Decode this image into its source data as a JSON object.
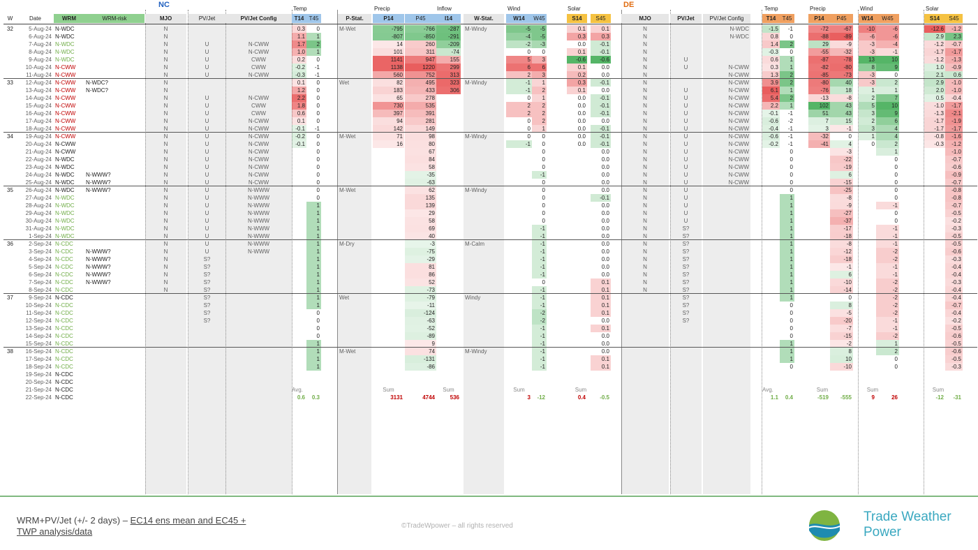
{
  "colors": {
    "green": "#2f8f2f",
    "red": "#c00000",
    "lightgreen": "#70ad47",
    "blue": "#1f5fbf",
    "orange": "#e06c10",
    "gray": "#606060"
  },
  "header": {
    "nc_label": "NC",
    "de_label": "DE",
    "temp": "Temp",
    "precip": "Precip",
    "inflow": "Inflow",
    "wind": "Wind",
    "solar": "Solar",
    "cols": {
      "w": "W",
      "date": "Date",
      "wrm": "WRM",
      "wrm_risk": "WRM-risk",
      "mjo": "MJO",
      "pvjet": "PV/Jet",
      "pvjet_config": "PV/Jet Config",
      "t14": "T14",
      "t45": "T45",
      "pstat": "P-Stat.",
      "p14": "P14",
      "p45": "P45",
      "i14": "I14",
      "wstat": "W-Stat.",
      "w14": "W14",
      "w45": "W45",
      "s14": "S14",
      "s45": "S45",
      "de_mjo": "MJO",
      "de_pvjet": "PV/Jet",
      "de_pvjet_config": "PV/Jet Config",
      "de_t14": "T14",
      "de_t45": "T45",
      "de_p14": "P14",
      "de_p45": "P45",
      "de_w14": "W14",
      "de_w45": "W45",
      "de_s14": "S14",
      "de_s45": "S45"
    }
  },
  "summary": {
    "avg": "Avg.",
    "sum": "Sum",
    "nc": {
      "t14": "0.6",
      "t45": "0.3",
      "p14": "3131",
      "p45": "4744",
      "i14": "536",
      "w14": "3",
      "w45": "-12",
      "s14": "0.4",
      "s45": "-0.5"
    },
    "de": {
      "t14": "1.1",
      "t45": "0.4",
      "p14": "-519",
      "p45": "-555",
      "w14": "9",
      "w45": "26",
      "s14": "-12",
      "s45": "-31"
    }
  },
  "rows": [
    [
      "32",
      "5-Aug-24",
      "N-WDC",
      "",
      "N",
      "",
      "",
      "0.3",
      "0",
      "M-Wet",
      "-795",
      "-766",
      "-287",
      "M-Windy",
      "-5",
      "-5",
      "0.1",
      "0.1",
      "N",
      "",
      "N-WDC",
      "-1.5",
      "-1",
      "-72",
      "-67",
      "-10",
      "-6",
      "-12.6",
      "-1.2"
    ],
    [
      "",
      "6-Aug-24",
      "N-WDC",
      "",
      "N",
      "",
      "",
      "1.1",
      "1",
      "",
      "-807",
      "-850",
      "-291",
      "",
      "-4",
      "-5",
      "0.3",
      "0.3",
      "N",
      "",
      "N-WDC",
      "0.8",
      "0",
      "-88",
      "-89",
      "-6",
      "-6",
      "2.9",
      "2.3"
    ],
    [
      "",
      "7-Aug-24",
      "N-WDC",
      "",
      "N",
      "U",
      "N-CWW",
      "1.7",
      "2",
      "",
      "14",
      "260",
      "-209",
      "",
      "-2",
      "-3",
      "0.0",
      "-0.1",
      "N",
      "",
      "",
      "1.4",
      "2",
      "29",
      "-9",
      "-3",
      "-4",
      "-1.2",
      "-0.7"
    ],
    [
      "",
      "8-Aug-24",
      "N-WDC",
      "",
      "N",
      "U",
      "N-CWW",
      "1.0",
      "1",
      "",
      "101",
      "311",
      "-74",
      "",
      "0",
      "0",
      "0.1",
      "-0.1",
      "N",
      "",
      "",
      "-0.3",
      "0",
      "-55",
      "-32",
      "-3",
      "-1",
      "-1.7",
      "-1.7"
    ],
    [
      "",
      "9-Aug-24",
      "N-WDC",
      "",
      "N",
      "U",
      "CWW",
      "0.2",
      "0",
      "",
      "1141",
      "947",
      "155",
      "",
      "5",
      "3",
      "-0.6",
      "-0.6",
      "N",
      "U",
      "",
      "0.6",
      "1",
      "-87",
      "-78",
      "13",
      "10",
      "-1.2",
      "-1.3"
    ],
    [
      "",
      "10-Aug-24",
      "N-CWW",
      "",
      "N",
      "U",
      "CWW",
      "-0.2",
      "-1",
      "",
      "1138",
      "1220",
      "299",
      "",
      "6",
      "6",
      "0.1",
      "0.0",
      "N",
      "U",
      "N-CWW",
      "0.3",
      "1",
      "-82",
      "-80",
      "8",
      "9",
      "1.0",
      "-0.9"
    ],
    [
      "",
      "11-Aug-24",
      "N-CWW",
      "",
      "N",
      "U",
      "N-CWW",
      "-0.3",
      "-1",
      "",
      "560",
      "752",
      "313",
      "",
      "2",
      "3",
      "0.2",
      "0.0",
      "N",
      "",
      "N-CWW",
      "1.3",
      "2",
      "-85",
      "-73",
      "-3",
      "0",
      "2.1",
      "0.6"
    ],
    [
      "33",
      "12-Aug-24",
      "N-CWW",
      "N-WDC?",
      "N",
      "",
      "",
      "0.1",
      "0",
      "Wet",
      "82",
      "495",
      "323",
      "M-Windy",
      "-1",
      "1",
      "0.3",
      "-0.1",
      "N",
      "",
      "N-CWW",
      "3.9",
      "2",
      "-80",
      "40",
      "-3",
      "2",
      "2.9",
      "-1.0"
    ],
    [
      "",
      "13-Aug-24",
      "N-CWW",
      "N-WDC?",
      "N",
      "",
      "",
      "1.2",
      "0",
      "",
      "183",
      "433",
      "306",
      "",
      "-1",
      "2",
      "0.1",
      "0.0",
      "N",
      "U",
      "N-CWW",
      "6.1",
      "1",
      "-76",
      "18",
      "1",
      "1",
      "2.0",
      "-1.0"
    ],
    [
      "",
      "14-Aug-24",
      "N-CWW",
      "",
      "N",
      "U",
      "N-CWW",
      "2.2",
      "0",
      "",
      "65",
      "278",
      "",
      "",
      "0",
      "1",
      "0.0",
      "-0.1",
      "N",
      "U",
      "N-CWW",
      "5.4",
      "2",
      "-13",
      "-8",
      "2",
      "7",
      "0.5",
      "-0.4"
    ],
    [
      "",
      "15-Aug-24",
      "N-CWW",
      "",
      "N",
      "U",
      "CWW",
      "1.8",
      "0",
      "",
      "730",
      "535",
      "",
      "",
      "2",
      "2",
      "0.0",
      "-0.1",
      "N",
      "U",
      "N-CWW",
      "2.2",
      "1",
      "102",
      "43",
      "5",
      "10",
      "-1.0",
      "-1.7"
    ],
    [
      "",
      "16-Aug-24",
      "N-CWW",
      "",
      "N",
      "U",
      "CWW",
      "0.6",
      "0",
      "",
      "397",
      "391",
      "",
      "",
      "2",
      "2",
      "0.0",
      "-0.1",
      "N",
      "U",
      "N-CWW",
      "-0.1",
      "-1",
      "51",
      "43",
      "3",
      "9",
      "-1.3",
      "-2.1"
    ],
    [
      "",
      "17-Aug-24",
      "N-CWW",
      "",
      "N",
      "U",
      "N-CWW",
      "0.1",
      "0",
      "",
      "94",
      "281",
      "",
      "",
      "0",
      "2",
      "0.0",
      "0.0",
      "N",
      "U",
      "N-CWW",
      "-0.6",
      "-2",
      "7",
      "15",
      "2",
      "6",
      "-1.7",
      "-1.9"
    ],
    [
      "",
      "18-Aug-24",
      "N-CWW",
      "",
      "N",
      "U",
      "N-CWW",
      "-0.1",
      "-1",
      "",
      "142",
      "149",
      "",
      "",
      "0",
      "1",
      "0.0",
      "-0.1",
      "N",
      "U",
      "N-CWW",
      "-0.4",
      "-1",
      "3",
      "-1",
      "3",
      "4",
      "-1.7",
      "-1.7"
    ],
    [
      "34",
      "19-Aug-24",
      "N-CWW",
      "",
      "N",
      "U",
      "N-CWW",
      "-0.2",
      "0",
      "M-Wet",
      "71",
      "98",
      "",
      "M-Windy",
      "0",
      "0",
      "0.0",
      "-0.1",
      "N",
      "U",
      "N-CWW",
      "-0.6",
      "-1",
      "-32",
      "0",
      "1",
      "4",
      "-0.8",
      "-1.6"
    ],
    [
      "",
      "20-Aug-24",
      "N-CWW",
      "",
      "N",
      "U",
      "N-CWW",
      "-0.1",
      "0",
      "",
      "16",
      "80",
      "",
      "",
      "-1",
      "0",
      "0.0",
      "-0.1",
      "N",
      "U",
      "N-CWW",
      "-0.2",
      "-1",
      "-41",
      "4",
      "0",
      "2",
      "-0.3",
      "-1.2"
    ],
    [
      "",
      "21-Aug-24",
      "N-CWW",
      "",
      "N",
      "U",
      "N-CWW",
      "",
      "0",
      "",
      "",
      "67",
      "",
      "",
      "",
      "0",
      "",
      "0.0",
      "N",
      "U",
      "N-CWW",
      "",
      "0",
      "",
      "-3",
      "",
      "1",
      "",
      "-1.0"
    ],
    [
      "",
      "22-Aug-24",
      "N-WDC",
      "",
      "N",
      "U",
      "N-CWW",
      "",
      "0",
      "",
      "",
      "84",
      "",
      "",
      "",
      "0",
      "",
      "0.0",
      "N",
      "U",
      "N-CWW",
      "",
      "0",
      "",
      "-22",
      "",
      "0",
      "",
      "-0.7"
    ],
    [
      "",
      "23-Aug-24",
      "N-WDC",
      "",
      "N",
      "U",
      "N-CWW",
      "",
      "0",
      "",
      "",
      "58",
      "",
      "",
      "",
      "0",
      "",
      "0.0",
      "N",
      "U",
      "N-CWW",
      "",
      "0",
      "",
      "-19",
      "",
      "0",
      "",
      "-0.6"
    ],
    [
      "",
      "24-Aug-24",
      "N-WDC",
      "N-WWW?",
      "N",
      "U",
      "N-CWW",
      "",
      "0",
      "",
      "",
      "-35",
      "",
      "",
      "",
      "-1",
      "",
      "0.0",
      "N",
      "U",
      "N-CWW",
      "",
      "0",
      "",
      "6",
      "",
      "0",
      "",
      "-0.9"
    ],
    [
      "",
      "25-Aug-24",
      "N-WDC",
      "N-WWW?",
      "N",
      "U",
      "N-CWW",
      "",
      "0",
      "",
      "",
      "-63",
      "",
      "",
      "",
      "0",
      "",
      "0.0",
      "N",
      "U",
      "N-CWW",
      "",
      "0",
      "",
      "-15",
      "",
      "0",
      "",
      "-0.7"
    ],
    [
      "35",
      "26-Aug-24",
      "N-WDC",
      "N-WWW?",
      "N",
      "U",
      "N-WWW",
      "",
      "0",
      "M-Wet",
      "",
      "62",
      "",
      "M-Windy",
      "",
      "0",
      "",
      "0.0",
      "N",
      "U",
      "",
      "",
      "0",
      "",
      "-25",
      "",
      "0",
      "",
      "-0.8"
    ],
    [
      "",
      "27-Aug-24",
      "N-WDC",
      "",
      "N",
      "U",
      "N-WWW",
      "",
      "0",
      "",
      "",
      "135",
      "",
      "",
      "",
      "0",
      "",
      "-0.1",
      "N",
      "U",
      "",
      "",
      "1",
      "",
      "-8",
      "",
      "0",
      "",
      "-0.8"
    ],
    [
      "",
      "28-Aug-24",
      "N-WDC",
      "",
      "N",
      "U",
      "N-WWW",
      "",
      "1",
      "",
      "",
      "139",
      "",
      "",
      "",
      "0",
      "",
      "0.0",
      "N",
      "U",
      "",
      "",
      "1",
      "",
      "-9",
      "",
      "-1",
      "",
      "-0.7"
    ],
    [
      "",
      "29-Aug-24",
      "N-WDC",
      "",
      "N",
      "U",
      "N-WWW",
      "",
      "1",
      "",
      "",
      "29",
      "",
      "",
      "",
      "0",
      "",
      "0.0",
      "N",
      "U",
      "",
      "",
      "1",
      "",
      "-27",
      "",
      "0",
      "",
      "-0.5"
    ],
    [
      "",
      "30-Aug-24",
      "N-WDC",
      "",
      "N",
      "U",
      "N-WWW",
      "",
      "1",
      "",
      "",
      "58",
      "",
      "",
      "",
      "0",
      "",
      "0.0",
      "N",
      "U",
      "",
      "",
      "1",
      "",
      "-37",
      "",
      "0",
      "",
      "-0.2"
    ],
    [
      "",
      "31-Aug-24",
      "N-WDC",
      "",
      "N",
      "U",
      "N-WWW",
      "",
      "1",
      "",
      "",
      "69",
      "",
      "",
      "",
      "-1",
      "",
      "0.0",
      "N",
      "S?",
      "",
      "",
      "1",
      "",
      "-17",
      "",
      "-1",
      "",
      "-0.3"
    ],
    [
      "",
      "1-Sep-24",
      "N-WDC",
      "",
      "N",
      "U",
      "N-WWW",
      "",
      "1",
      "",
      "",
      "40",
      "",
      "",
      "",
      "-1",
      "",
      "0.0",
      "N",
      "S?",
      "",
      "",
      "1",
      "",
      "-18",
      "",
      "-1",
      "",
      "-0.5"
    ],
    [
      "36",
      "2-Sep-24",
      "N-CDC",
      "",
      "N",
      "U",
      "N-WWW",
      "",
      "1",
      "M-Dry",
      "",
      "-3",
      "",
      "M-Calm",
      "",
      "-1",
      "",
      "0.0",
      "N",
      "S?",
      "",
      "",
      "1",
      "",
      "-8",
      "",
      "-1",
      "",
      "-0.5"
    ],
    [
      "",
      "3-Sep-24",
      "N-CDC",
      "N-WWW?",
      "N",
      "U",
      "N-WWW",
      "",
      "1",
      "",
      "",
      "-75",
      "",
      "",
      "",
      "-1",
      "",
      "0.0",
      "N",
      "S?",
      "",
      "",
      "1",
      "",
      "-12",
      "",
      "-2",
      "",
      "-0.6"
    ],
    [
      "",
      "4-Sep-24",
      "N-CDC",
      "N-WWW?",
      "N",
      "S?",
      "",
      "",
      "1",
      "",
      "",
      "-29",
      "",
      "",
      "",
      "-1",
      "",
      "0.0",
      "N",
      "S?",
      "",
      "",
      "1",
      "",
      "-18",
      "",
      "-2",
      "",
      "-0.3"
    ],
    [
      "",
      "5-Sep-24",
      "N-CDC",
      "N-WWW?",
      "N",
      "S?",
      "",
      "",
      "1",
      "",
      "",
      "81",
      "",
      "",
      "",
      "-1",
      "",
      "0.0",
      "N",
      "S?",
      "",
      "",
      "1",
      "",
      "-1",
      "",
      "-1",
      "",
      "-0.4"
    ],
    [
      "",
      "6-Sep-24",
      "N-CDC",
      "N-WWW?",
      "N",
      "S?",
      "",
      "",
      "1",
      "",
      "",
      "86",
      "",
      "",
      "",
      "-1",
      "",
      "0.0",
      "N",
      "S?",
      "",
      "",
      "1",
      "",
      "6",
      "",
      "-1",
      "",
      "-0.4"
    ],
    [
      "",
      "7-Sep-24",
      "N-CDC",
      "N-WWW?",
      "N",
      "S?",
      "",
      "",
      "1",
      "",
      "",
      "52",
      "",
      "",
      "",
      "0",
      "",
      "0.1",
      "N",
      "S?",
      "",
      "",
      "1",
      "",
      "-10",
      "",
      "-2",
      "",
      "-0.3"
    ],
    [
      "",
      "8-Sep-24",
      "N-CDC",
      "",
      "N",
      "S?",
      "",
      "",
      "1",
      "",
      "",
      "-73",
      "",
      "",
      "",
      "-1",
      "",
      "0.1",
      "N",
      "S?",
      "",
      "",
      "1",
      "",
      "-14",
      "",
      "-2",
      "",
      "-0.4"
    ],
    [
      "37",
      "9-Sep-24",
      "N-CDC",
      "",
      "",
      "S?",
      "",
      "",
      "1",
      "Wet",
      "",
      "-79",
      "",
      "Windy",
      "",
      "-1",
      "",
      "0.1",
      "",
      "S?",
      "",
      "",
      "1",
      "",
      "0",
      "",
      "-2",
      "",
      "-0.4"
    ],
    [
      "",
      "10-Sep-24",
      "N-CDC",
      "",
      "",
      "S?",
      "",
      "",
      "1",
      "",
      "",
      "-11",
      "",
      "",
      "",
      "-1",
      "",
      "0.1",
      "",
      "S?",
      "",
      "",
      "0",
      "",
      "8",
      "",
      "-2",
      "",
      "-0.7"
    ],
    [
      "",
      "11-Sep-24",
      "N-CDC",
      "",
      "",
      "S?",
      "",
      "",
      "0",
      "",
      "",
      "-124",
      "",
      "",
      "",
      "-2",
      "",
      "0.1",
      "",
      "S?",
      "",
      "",
      "0",
      "",
      "-5",
      "",
      "-2",
      "",
      "-0.4"
    ],
    [
      "",
      "12-Sep-24",
      "N-CDC",
      "",
      "",
      "S?",
      "",
      "",
      "0",
      "",
      "",
      "-63",
      "",
      "",
      "",
      "-2",
      "",
      "0.0",
      "",
      "S?",
      "",
      "",
      "0",
      "",
      "-20",
      "",
      "-1",
      "",
      "-0.2"
    ],
    [
      "",
      "13-Sep-24",
      "N-CDC",
      "",
      "",
      "",
      "",
      "",
      "0",
      "",
      "",
      "-52",
      "",
      "",
      "",
      "-1",
      "",
      "0.1",
      "",
      "",
      "",
      "",
      "0",
      "",
      "-7",
      "",
      "-1",
      "",
      "-0.5"
    ],
    [
      "",
      "14-Sep-24",
      "N-CDC",
      "",
      "",
      "",
      "",
      "",
      "0",
      "",
      "",
      "-89",
      "",
      "",
      "",
      "-1",
      "",
      "0.0",
      "",
      "",
      "",
      "",
      "0",
      "",
      "-15",
      "",
      "-2",
      "",
      "-0.6"
    ],
    [
      "",
      "15-Sep-24",
      "N-CDC",
      "",
      "",
      "",
      "",
      "",
      "1",
      "",
      "",
      "9",
      "",
      "",
      "",
      "-1",
      "",
      "0.0",
      "",
      "",
      "",
      "",
      "1",
      "",
      "-2",
      "",
      "1",
      "",
      "-0.5"
    ],
    [
      "38",
      "16-Sep-24",
      "N-CDC",
      "",
      "",
      "",
      "",
      "",
      "1",
      "M-Wet",
      "",
      "74",
      "",
      "M-Windy",
      "",
      "-1",
      "",
      "0.0",
      "",
      "",
      "",
      "",
      "1",
      "",
      "8",
      "",
      "2",
      "",
      "-0.6"
    ],
    [
      "",
      "17-Sep-24",
      "N-CDC",
      "",
      "",
      "",
      "",
      "",
      "1",
      "",
      "",
      "-131",
      "",
      "",
      "",
      "-1",
      "",
      "0.1",
      "",
      "",
      "",
      "",
      "1",
      "",
      "10",
      "",
      "0",
      "",
      "-0.5"
    ],
    [
      "",
      "18-Sep-24",
      "N-CDC",
      "",
      "",
      "",
      "",
      "",
      "1",
      "",
      "",
      "-86",
      "",
      "",
      "",
      "-1",
      "",
      "0.1",
      "",
      "",
      "",
      "",
      "0",
      "",
      "-10",
      "",
      "0",
      "",
      "-0.3"
    ],
    [
      "",
      "19-Sep-24",
      "N-CDC",
      "",
      "",
      "",
      "",
      "",
      "",
      "",
      "",
      "",
      "",
      "",
      "",
      "",
      "",
      "",
      "",
      "",
      "",
      "",
      "",
      "",
      "",
      "",
      "",
      "",
      ""
    ],
    [
      "",
      "20-Sep-24",
      "N-CDC",
      "",
      "",
      "",
      "",
      "",
      "",
      "",
      "",
      "",
      "",
      "",
      "",
      "",
      "",
      "",
      "",
      "",
      "",
      "",
      "",
      "",
      "",
      "",
      "",
      "",
      ""
    ],
    [
      "",
      "21-Sep-24",
      "N-CDC",
      "",
      "",
      "",
      "",
      "",
      "",
      "",
      "",
      "",
      "",
      "",
      "",
      "",
      "",
      "",
      "",
      "",
      "",
      "",
      "",
      "",
      "",
      "",
      "",
      "",
      ""
    ],
    [
      "",
      "22-Sep-24",
      "N-CDC",
      "",
      "",
      "",
      "",
      "",
      "",
      "",
      "",
      "",
      "",
      "",
      "",
      "",
      "",
      "",
      "",
      "",
      "",
      "",
      "",
      "",
      "",
      "",
      "",
      "",
      ""
    ]
  ],
  "footer": {
    "text_prefix": "WRM+PV/Jet (+/- 2 days) – ",
    "text_link1": "EC14 ens mean and EC45 +",
    "text_link2": "TWP analysis/data",
    "copyright": "©TradeWpower – all rights reserved",
    "logo_line1": "Trade Weather",
    "logo_line2": "Power"
  }
}
